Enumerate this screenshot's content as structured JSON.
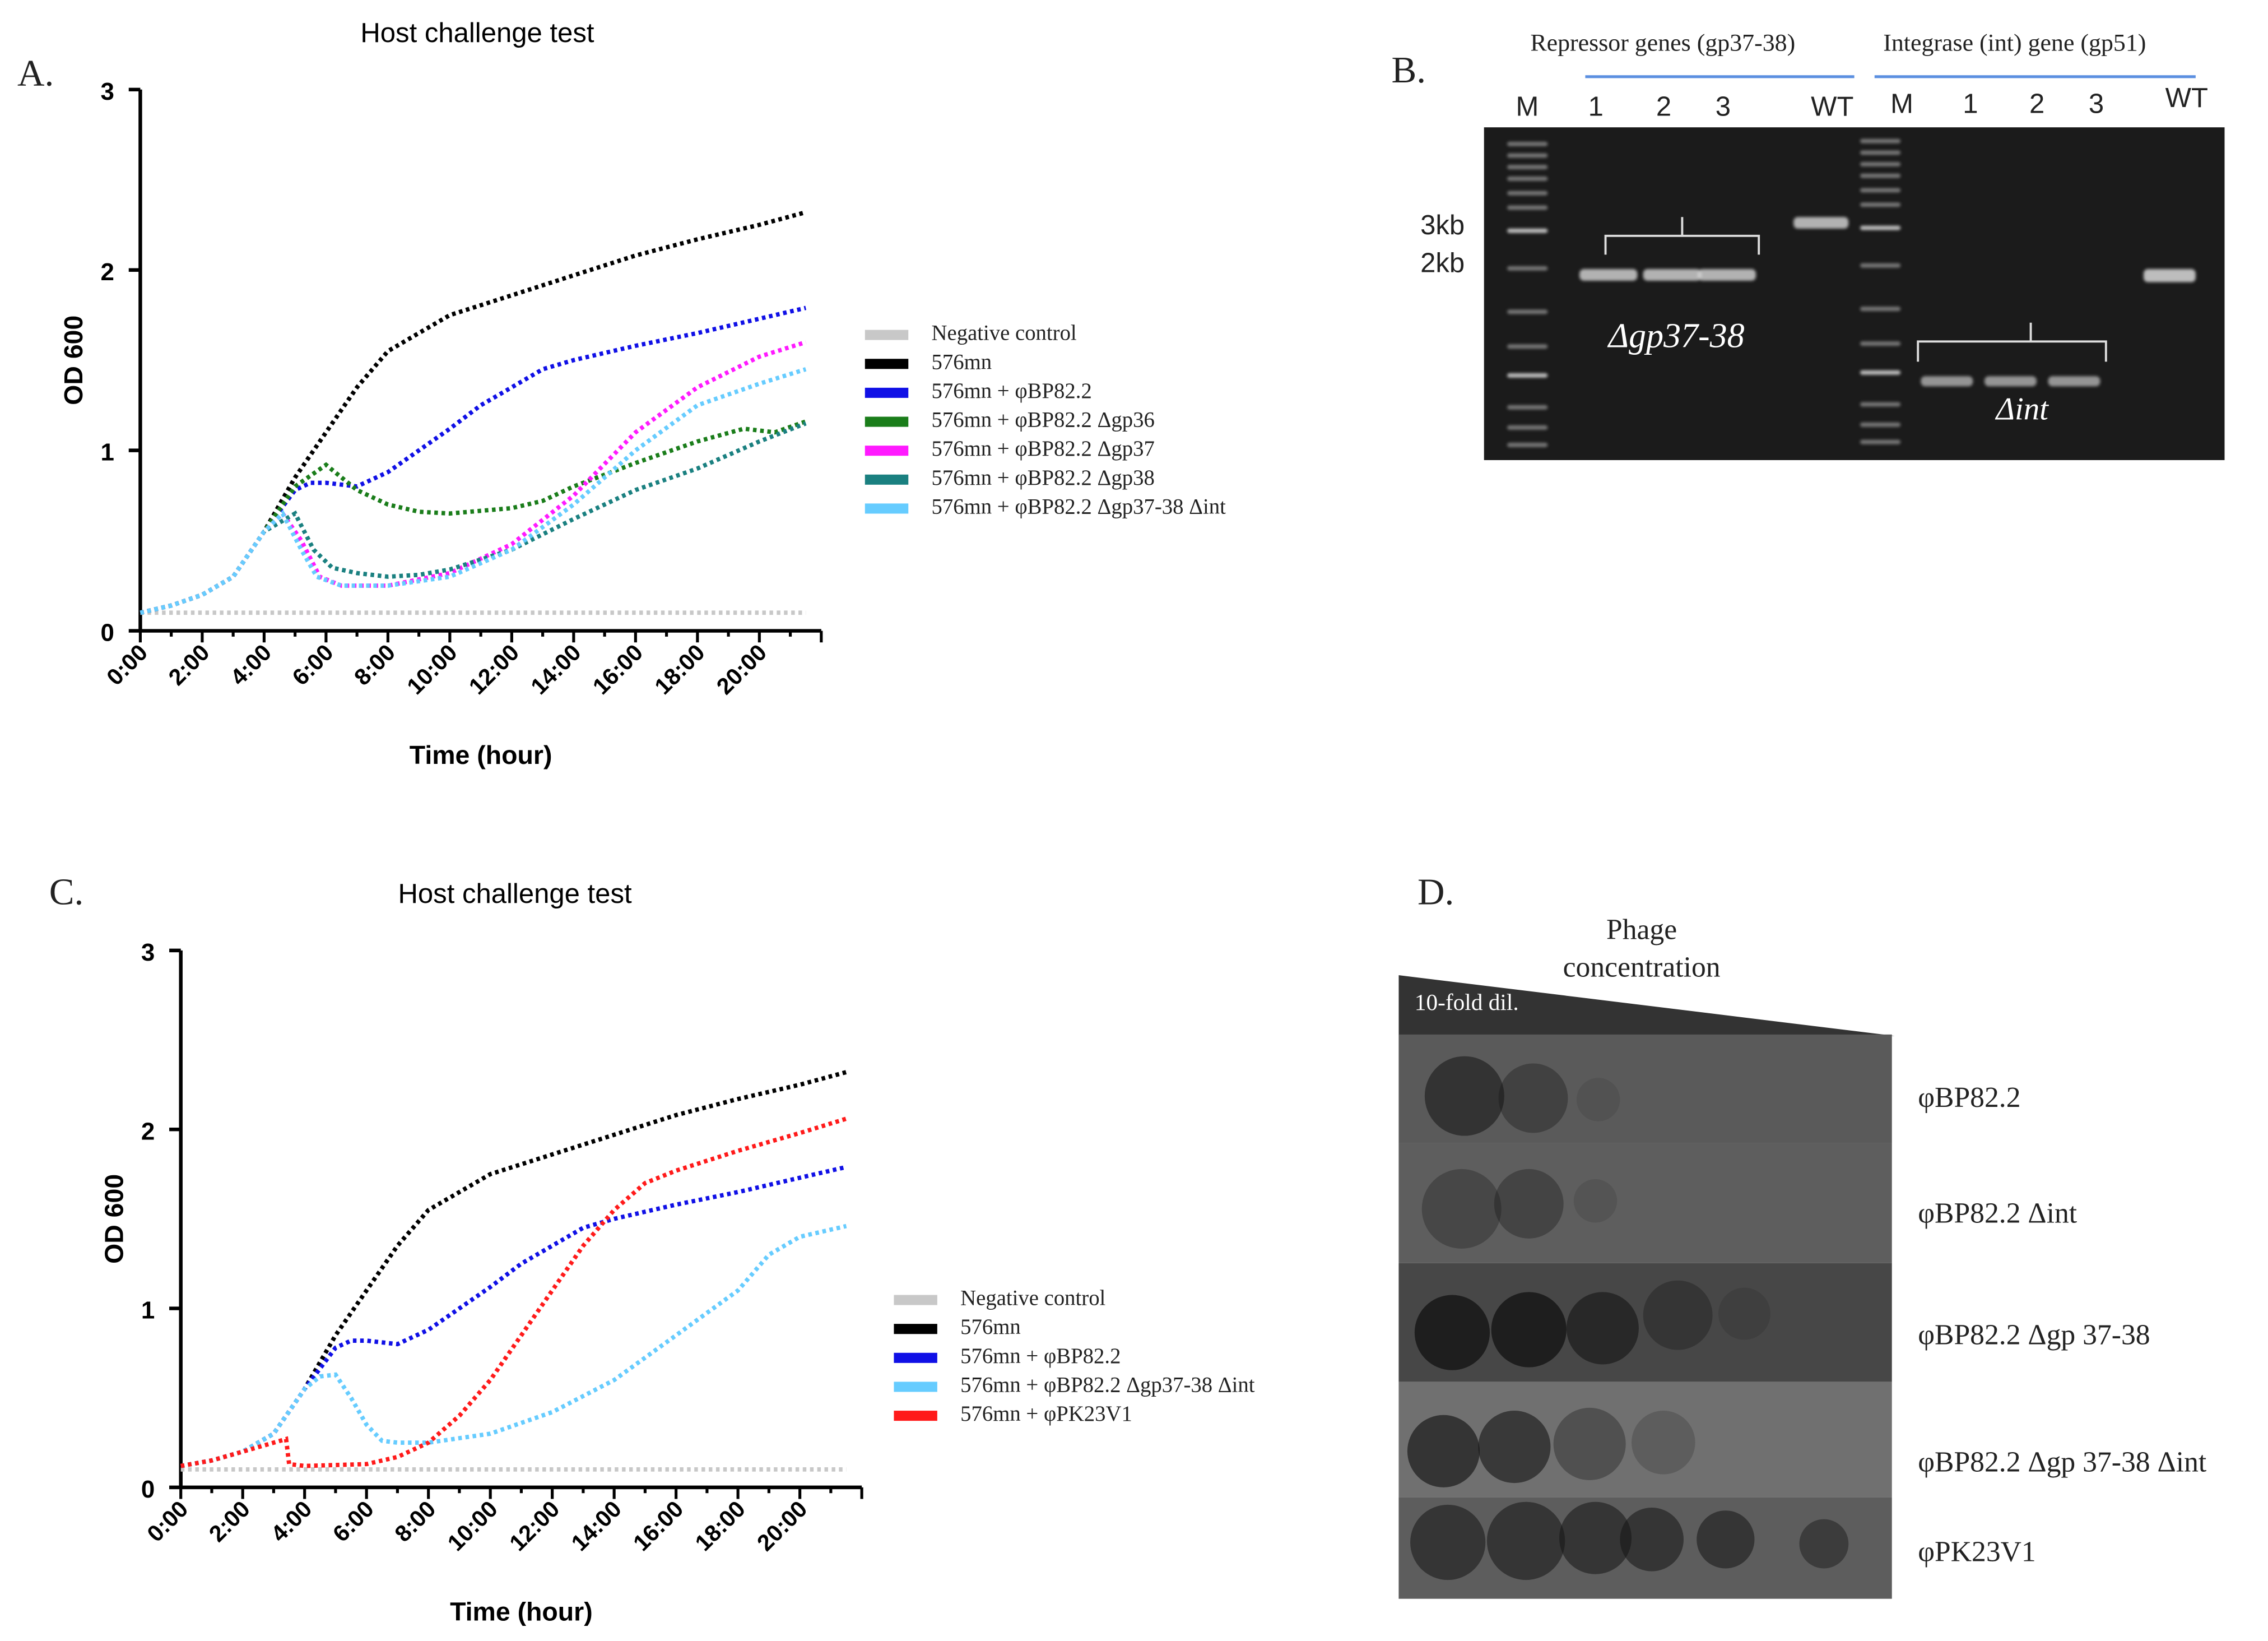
{
  "panels": {
    "a": "A.",
    "b": "B.",
    "c": "C.",
    "d": "D."
  },
  "chart_data": [
    {
      "type": "line",
      "title": "Host challenge test",
      "xlabel": "Time (hour)",
      "ylabel": "OD 600",
      "xlim": [
        0,
        22
      ],
      "ylim": [
        0,
        3
      ],
      "xticks": [
        "0:00",
        "2:00",
        "4:00",
        "6:00",
        "8:00",
        "10:00",
        "12:00",
        "14:00",
        "16:00",
        "18:00",
        "20:00"
      ],
      "yticks": [
        "0",
        "1",
        "2",
        "3"
      ],
      "legend": "right",
      "series": [
        {
          "name": "Negative control",
          "color": "#c8c8c8",
          "x": [
            0,
            21.5
          ],
          "y": [
            0.1,
            0.1
          ]
        },
        {
          "name": "576mn",
          "color": "#000000",
          "x": [
            0,
            1,
            2,
            3,
            4,
            5,
            6,
            7,
            8,
            9,
            10,
            12,
            14,
            16,
            18,
            20,
            21.5
          ],
          "y": [
            0.1,
            0.14,
            0.2,
            0.3,
            0.55,
            0.85,
            1.1,
            1.35,
            1.55,
            1.65,
            1.75,
            1.86,
            1.97,
            2.08,
            2.17,
            2.25,
            2.32
          ]
        },
        {
          "name": "576mn + φBP82.2",
          "color": "#1010e6",
          "x": [
            0,
            1,
            2,
            3,
            4,
            5,
            5.5,
            6,
            7,
            8,
            9,
            10,
            11,
            12,
            13,
            14,
            16,
            18,
            20,
            21.5
          ],
          "y": [
            0.1,
            0.14,
            0.2,
            0.3,
            0.55,
            0.78,
            0.82,
            0.82,
            0.8,
            0.88,
            1.0,
            1.12,
            1.25,
            1.35,
            1.45,
            1.5,
            1.58,
            1.65,
            1.73,
            1.79
          ]
        },
        {
          "name": "576mn + φBP82.2 Δgp36",
          "color": "#1a7d1a",
          "x": [
            0,
            1,
            2,
            3,
            4,
            5,
            6,
            7,
            8,
            9,
            10,
            12,
            13,
            14,
            16,
            18,
            19.5,
            20.5,
            21.5
          ],
          "y": [
            0.1,
            0.14,
            0.2,
            0.3,
            0.55,
            0.8,
            0.92,
            0.78,
            0.7,
            0.66,
            0.65,
            0.68,
            0.72,
            0.8,
            0.93,
            1.05,
            1.12,
            1.1,
            1.16
          ]
        },
        {
          "name": "576mn + φBP82.2 Δgp37",
          "color": "#ff1aff",
          "x": [
            0,
            1,
            2,
            3,
            4,
            4.6,
            5.2,
            5.8,
            6.5,
            8,
            10,
            12,
            14,
            16,
            18,
            20,
            21.5
          ],
          "y": [
            0.1,
            0.14,
            0.2,
            0.3,
            0.55,
            0.65,
            0.5,
            0.3,
            0.25,
            0.25,
            0.32,
            0.48,
            0.75,
            1.1,
            1.35,
            1.52,
            1.6
          ]
        },
        {
          "name": "576mn + φBP82.2 Δgp38",
          "color": "#1a8080",
          "x": [
            0,
            1,
            2,
            3,
            4,
            5,
            5.6,
            6.2,
            7,
            8,
            9,
            10,
            12,
            14,
            16,
            18,
            20,
            21.5
          ],
          "y": [
            0.1,
            0.14,
            0.2,
            0.3,
            0.55,
            0.65,
            0.45,
            0.35,
            0.32,
            0.3,
            0.31,
            0.34,
            0.45,
            0.62,
            0.78,
            0.9,
            1.05,
            1.15
          ]
        },
        {
          "name": "576mn + φBP82.2 Δgp37-38 Δint",
          "color": "#66ccff",
          "x": [
            0,
            1,
            2,
            3,
            4,
            4.6,
            5.2,
            5.7,
            6.5,
            8,
            10,
            12,
            14,
            16,
            18,
            20,
            21.5
          ],
          "y": [
            0.1,
            0.14,
            0.2,
            0.3,
            0.55,
            0.65,
            0.45,
            0.3,
            0.25,
            0.25,
            0.3,
            0.45,
            0.7,
            1.0,
            1.25,
            1.37,
            1.45
          ]
        }
      ]
    },
    {
      "type": "line",
      "title": "Host challenge test",
      "xlabel": "Time (hour)",
      "ylabel": "OD 600",
      "xlim": [
        0,
        22
      ],
      "ylim": [
        0,
        3
      ],
      "xticks": [
        "0:00",
        "2:00",
        "4:00",
        "6:00",
        "8:00",
        "10:00",
        "12:00",
        "14:00",
        "16:00",
        "18:00",
        "20:00"
      ],
      "yticks": [
        "0",
        "1",
        "2",
        "3"
      ],
      "legend": "bottom-right",
      "series": [
        {
          "name": "Negative control",
          "color": "#c8c8c8",
          "x": [
            0,
            21.5
          ],
          "y": [
            0.1,
            0.1
          ]
        },
        {
          "name": "576mn",
          "color": "#000000",
          "x": [
            0,
            1,
            2,
            3,
            4,
            5,
            6,
            7,
            8,
            9,
            10,
            12,
            14,
            16,
            18,
            20,
            21.5
          ],
          "y": [
            0.12,
            0.15,
            0.2,
            0.3,
            0.55,
            0.85,
            1.1,
            1.35,
            1.55,
            1.65,
            1.75,
            1.86,
            1.97,
            2.08,
            2.17,
            2.25,
            2.32
          ]
        },
        {
          "name": "576mn + φBP82.2",
          "color": "#1010e6",
          "x": [
            0,
            1,
            2,
            3,
            4,
            5,
            5.5,
            6,
            7,
            8,
            9,
            10,
            11,
            12,
            13,
            14,
            16,
            18,
            20,
            21.5
          ],
          "y": [
            0.12,
            0.15,
            0.2,
            0.3,
            0.55,
            0.78,
            0.82,
            0.82,
            0.8,
            0.88,
            1.0,
            1.12,
            1.25,
            1.35,
            1.45,
            1.5,
            1.58,
            1.65,
            1.73,
            1.79
          ]
        },
        {
          "name": "576mn + φBP82.2 Δgp37-38 Δint",
          "color": "#66ccff",
          "x": [
            0,
            1,
            2,
            3,
            4,
            4.5,
            5,
            5.5,
            6,
            6.5,
            7,
            8,
            10,
            12,
            14,
            16,
            18,
            19,
            20,
            21.5
          ],
          "y": [
            0.12,
            0.15,
            0.2,
            0.3,
            0.55,
            0.62,
            0.63,
            0.5,
            0.35,
            0.26,
            0.25,
            0.25,
            0.3,
            0.42,
            0.6,
            0.85,
            1.1,
            1.3,
            1.4,
            1.46
          ]
        },
        {
          "name": "576mn + φPK23V1",
          "color": "#ff1a1a",
          "x": [
            0,
            1,
            2,
            3,
            3.4,
            3.5,
            4,
            6,
            7,
            8,
            9,
            10,
            11,
            12,
            13,
            14,
            15,
            16,
            18,
            20,
            21.5
          ],
          "y": [
            0.12,
            0.15,
            0.2,
            0.25,
            0.27,
            0.13,
            0.12,
            0.13,
            0.17,
            0.25,
            0.4,
            0.6,
            0.85,
            1.1,
            1.35,
            1.55,
            1.7,
            1.77,
            1.88,
            1.98,
            2.06
          ]
        }
      ]
    }
  ],
  "gel": {
    "group1": "Repressor genes (gp37-38)",
    "group2": "Integrase (int) gene (gp51)",
    "lanes": [
      "M",
      "1",
      "2",
      "3",
      "WT",
      "M",
      "1",
      "2",
      "3",
      "WT"
    ],
    "markers": [
      "3kb",
      "2kb"
    ],
    "annot1": "Δgp37-38",
    "annot2": "Δint"
  },
  "plaque": {
    "title": "Phage concentration",
    "dilution": "10-fold dil.",
    "rows": [
      "φBP82.2",
      "φBP82.2 Δint",
      "φBP82.2 Δgp 37-38",
      "φBP82.2 Δgp 37-38 Δint",
      "φPK23V1"
    ]
  }
}
